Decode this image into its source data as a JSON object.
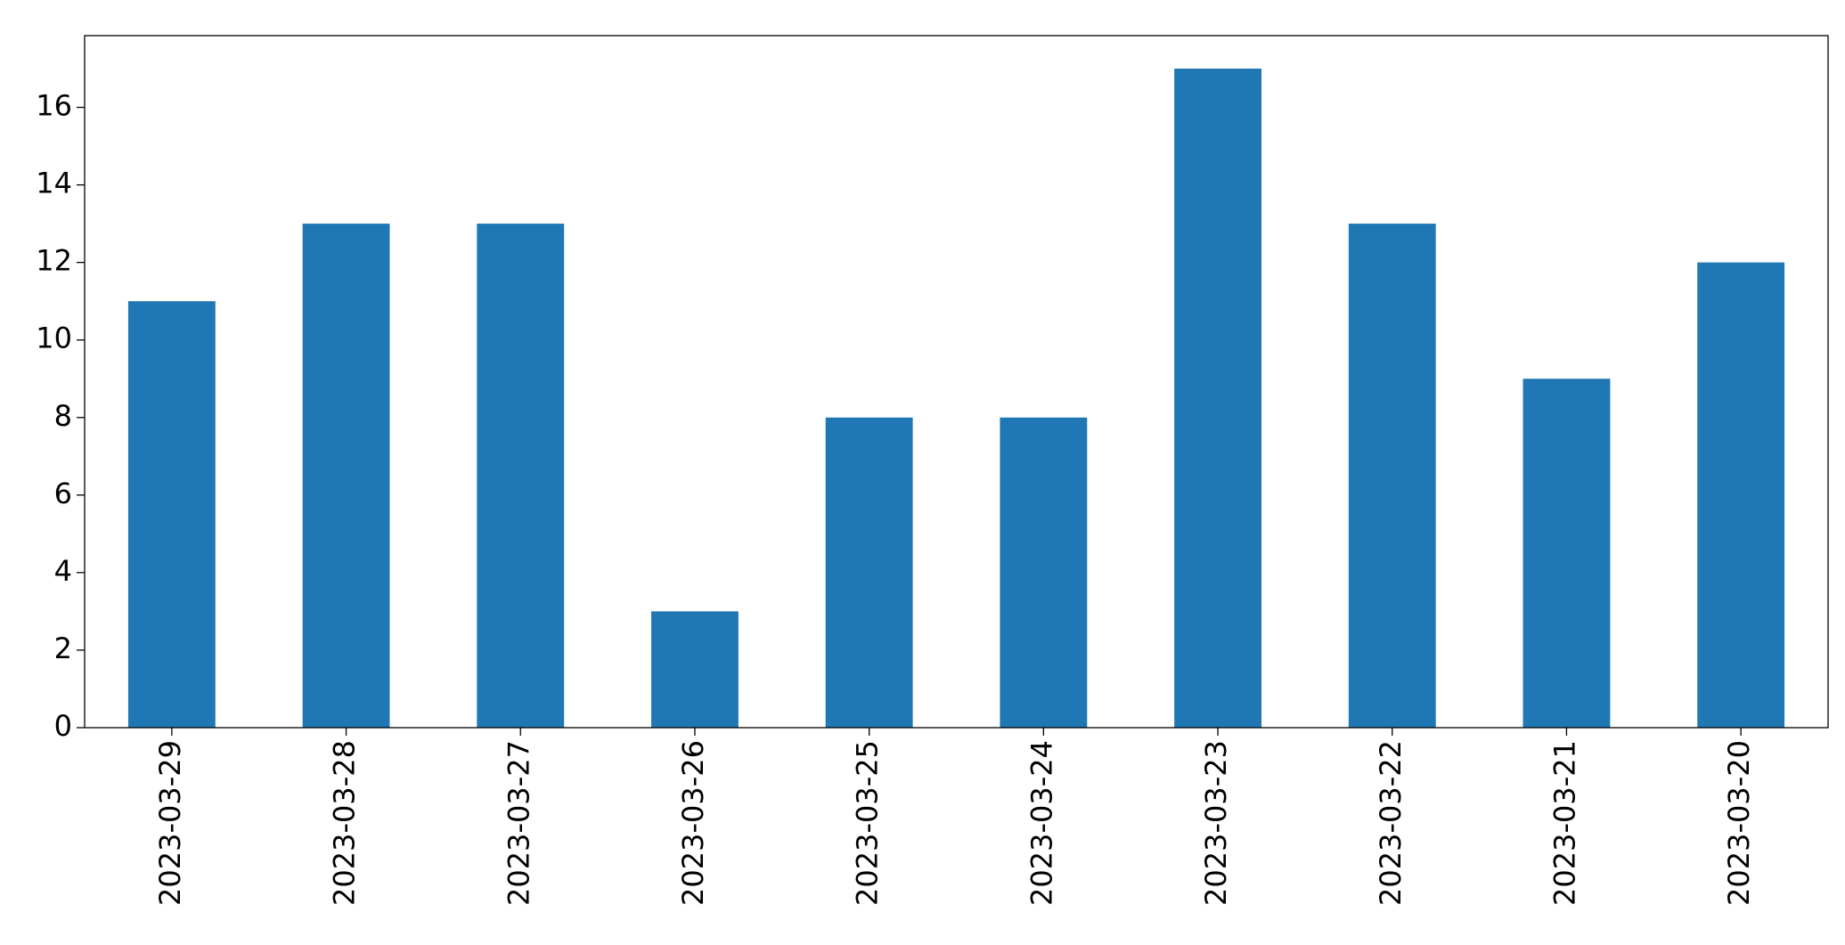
{
  "chart_data": {
    "type": "bar",
    "categories": [
      "2023-03-29",
      "2023-03-28",
      "2023-03-27",
      "2023-03-26",
      "2023-03-25",
      "2023-03-24",
      "2023-03-23",
      "2023-03-22",
      "2023-03-21",
      "2023-03-20"
    ],
    "values": [
      11,
      13,
      13,
      3,
      8,
      8,
      17,
      13,
      9,
      12
    ],
    "color": "#1f77b4",
    "ylim": [
      0,
      17.85
    ],
    "yticks": [
      0,
      2,
      4,
      6,
      8,
      10,
      12,
      14,
      16
    ],
    "grid": false
  }
}
